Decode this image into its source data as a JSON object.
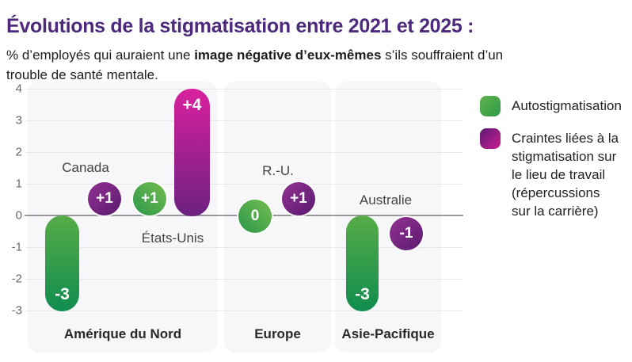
{
  "title": "Évolutions de la stigmatisation entre 2021 et 2025 :",
  "subtitle": {
    "part1": "% d’employés qui auraient une ",
    "bold": "image négative d’eux-mêmes",
    "part2": " s’ils souffraient d’un",
    "part3": "trouble de santé mentale."
  },
  "legend": {
    "items": [
      {
        "id": "autostigmatisation",
        "swatch": "green",
        "label": "Autostigmatisation"
      },
      {
        "id": "craintes-stigmatisation",
        "swatch": "purple",
        "label": "Craintes liées à la\nstigmatisation sur\nle lieu de travail\n(répercussions\nsur la carrière)"
      }
    ]
  },
  "colors": {
    "title": "#4e2a7c",
    "green_top": "#57ac47",
    "green_bottom": "#0f8d4f",
    "magenta_top": "#d9219e",
    "purple_bottom": "#6b2180",
    "purple_circle": "#7d2382",
    "panel_bg": "#f7f7f9",
    "gridline": "#e7e7ea",
    "zero_line": "#97979d"
  },
  "chart_data": {
    "type": "bar",
    "title": "Évolutions de la stigmatisation entre 2021 et 2025",
    "ylabel": "",
    "ylim": [
      -3,
      4
    ],
    "yticks": [
      4,
      3,
      2,
      1,
      0,
      -1,
      -2,
      -3
    ],
    "grid": true,
    "legend_position": "right",
    "series_names": [
      "Autostigmatisation",
      "Craintes liées à la stigmatisation sur le lieu de travail (répercussions sur la carrière)"
    ],
    "regions": [
      {
        "label": "Amérique du Nord",
        "countries": [
          {
            "name": "Canada",
            "values": [
              -3,
              1
            ],
            "value_labels": [
              "-3",
              "+1"
            ]
          },
          {
            "name": "États-Unis",
            "values": [
              1,
              4
            ],
            "value_labels": [
              "+1",
              "+4"
            ]
          }
        ]
      },
      {
        "label": "Europe",
        "countries": [
          {
            "name": "R.-U.",
            "values": [
              0,
              1
            ],
            "value_labels": [
              "0",
              "+1"
            ]
          }
        ]
      },
      {
        "label": "Asie-Pacifique",
        "countries": [
          {
            "name": "Australie",
            "values": [
              -3,
              -1
            ],
            "value_labels": [
              "-3",
              "-1"
            ]
          }
        ]
      }
    ]
  }
}
